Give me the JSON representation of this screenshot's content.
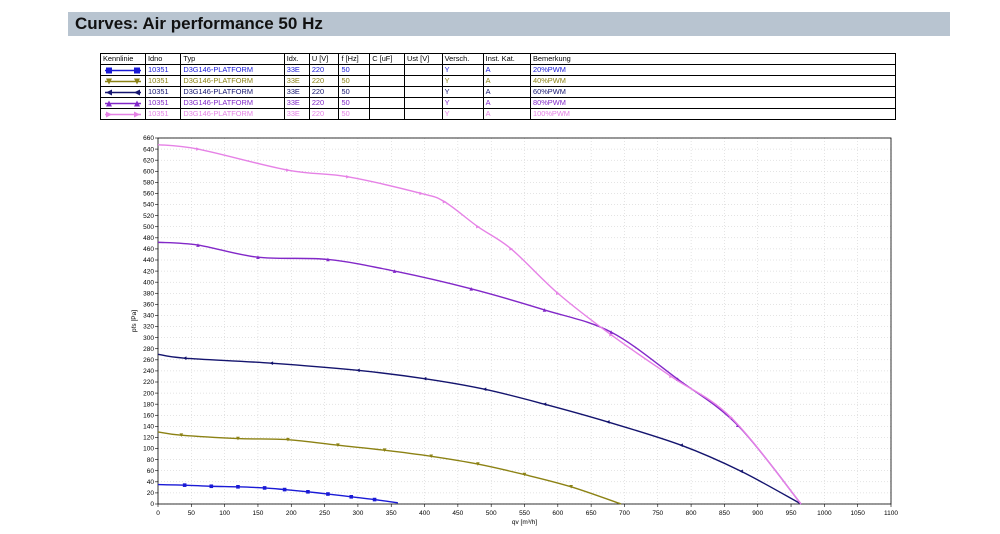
{
  "header": {
    "title": "Curves: Air performance 50 Hz"
  },
  "legend_table": {
    "columns": [
      "Kennlinie",
      "Idno",
      "Typ",
      "Idx.",
      "U [V]",
      "f [Hz]",
      "C [uF]",
      "Ust [V]",
      "Versch.",
      "Inst. Kat.",
      "Bemerkung"
    ],
    "rows": [
      {
        "idno": "10351",
        "typ": "D3G146-PLATFORM",
        "idx": "33E",
        "u": "220",
        "f": "50",
        "c": "",
        "ust": "",
        "versch": "Y",
        "inst": "A",
        "bemerkung": "20%PWM",
        "color": "#1a1ad6",
        "marker": "square"
      },
      {
        "idno": "10351",
        "typ": "D3G146-PLATFORM",
        "idx": "33E",
        "u": "220",
        "f": "50",
        "c": "",
        "ust": "",
        "versch": "Y",
        "inst": "A",
        "bemerkung": "40%PWM",
        "color": "#8c8214",
        "marker": "triangle-down"
      },
      {
        "idno": "10351",
        "typ": "D3G146-PLATFORM",
        "idx": "33E",
        "u": "220",
        "f": "50",
        "c": "",
        "ust": "",
        "versch": "Y",
        "inst": "A",
        "bemerkung": "60%PWM",
        "color": "#14146e",
        "marker": "triangle-left"
      },
      {
        "idno": "10351",
        "typ": "D3G146-PLATFORM",
        "idx": "33E",
        "u": "220",
        "f": "50",
        "c": "",
        "ust": "",
        "versch": "Y",
        "inst": "A",
        "bemerkung": "80%PWM",
        "color": "#8228c8",
        "marker": "triangle-up"
      },
      {
        "idno": "10351",
        "typ": "D3G146-PLATFORM",
        "idx": "33E",
        "u": "220",
        "f": "50",
        "c": "",
        "ust": "",
        "versch": "Y",
        "inst": "A",
        "bemerkung": "100%PWM",
        "color": "#e682e6",
        "marker": "triangle-right"
      }
    ]
  },
  "chart_data": {
    "type": "line",
    "xlabel": "qv [m³/h]",
    "ylabel": "pfs [Pa]",
    "xlim": [
      0,
      1100
    ],
    "ylim": [
      0,
      660
    ],
    "xticks": [
      0,
      50,
      100,
      150,
      200,
      250,
      300,
      350,
      400,
      450,
      500,
      550,
      600,
      650,
      700,
      750,
      800,
      850,
      900,
      950,
      1000,
      1050,
      1100
    ],
    "yticks": [
      0,
      20,
      40,
      60,
      80,
      100,
      120,
      140,
      160,
      180,
      200,
      220,
      240,
      260,
      280,
      300,
      320,
      340,
      360,
      380,
      400,
      420,
      440,
      460,
      480,
      500,
      520,
      540,
      560,
      580,
      600,
      620,
      640,
      660
    ],
    "grid": true,
    "series": [
      {
        "name": "20%PWM",
        "color": "#1a1ad6",
        "marker": "square",
        "points": [
          [
            0,
            35
          ],
          [
            40,
            34
          ],
          [
            80,
            32
          ],
          [
            120,
            31
          ],
          [
            160,
            29
          ],
          [
            190,
            26
          ],
          [
            225,
            22
          ],
          [
            255,
            18
          ],
          [
            290,
            13
          ],
          [
            325,
            8
          ],
          [
            360,
            2
          ]
        ]
      },
      {
        "name": "40%PWM",
        "color": "#8c8214",
        "marker": "triangle-down",
        "points": [
          [
            0,
            130
          ],
          [
            35,
            124
          ],
          [
            120,
            118
          ],
          [
            195,
            116
          ],
          [
            270,
            106
          ],
          [
            340,
            97
          ],
          [
            410,
            86
          ],
          [
            480,
            72
          ],
          [
            550,
            53
          ],
          [
            620,
            31
          ],
          [
            695,
            0
          ]
        ]
      },
      {
        "name": "60%PWM",
        "color": "#14146e",
        "marker": "triangle-left",
        "points": [
          [
            0,
            270
          ],
          [
            40,
            263
          ],
          [
            170,
            254
          ],
          [
            300,
            241
          ],
          [
            400,
            226
          ],
          [
            490,
            207
          ],
          [
            580,
            180
          ],
          [
            675,
            148
          ],
          [
            785,
            106
          ],
          [
            875,
            59
          ],
          [
            965,
            0
          ]
        ]
      },
      {
        "name": "80%PWM",
        "color": "#8228c8",
        "marker": "triangle-up",
        "points": [
          [
            0,
            472
          ],
          [
            60,
            467
          ],
          [
            150,
            445
          ],
          [
            255,
            441
          ],
          [
            355,
            420
          ],
          [
            470,
            388
          ],
          [
            580,
            350
          ],
          [
            680,
            310
          ],
          [
            780,
            225
          ],
          [
            870,
            142
          ],
          [
            965,
            0
          ]
        ]
      },
      {
        "name": "100%PWM",
        "color": "#e682e6",
        "marker": "triangle-right",
        "points": [
          [
            0,
            648
          ],
          [
            60,
            640
          ],
          [
            195,
            602
          ],
          [
            285,
            590
          ],
          [
            395,
            560
          ],
          [
            430,
            545
          ],
          [
            480,
            500
          ],
          [
            530,
            460
          ],
          [
            600,
            380
          ],
          [
            680,
            305
          ],
          [
            770,
            230
          ],
          [
            860,
            156
          ],
          [
            965,
            0
          ]
        ]
      }
    ]
  }
}
